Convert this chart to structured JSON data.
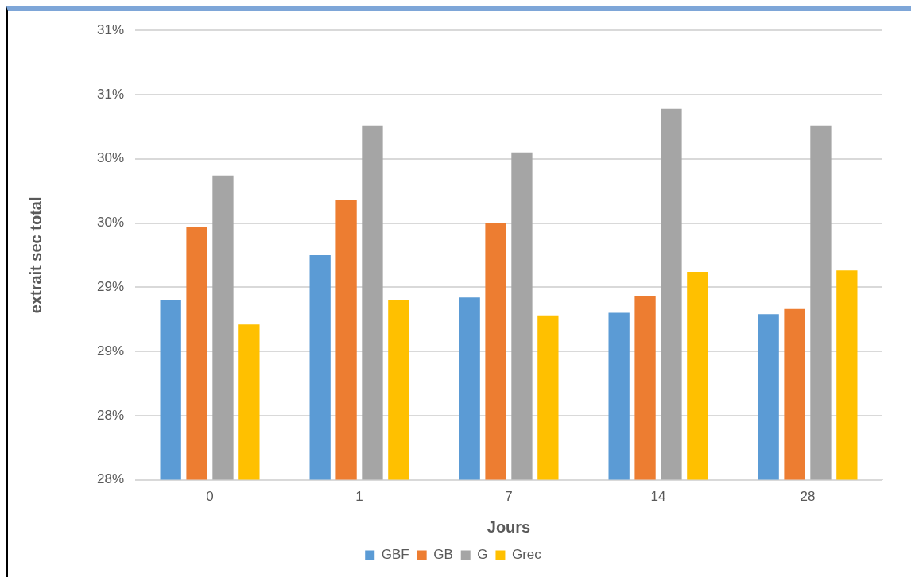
{
  "chart_data": {
    "type": "bar",
    "xlabel": "Jours",
    "ylabel": "extrait sec total",
    "categories": [
      "0",
      "1",
      "7",
      "14",
      "28"
    ],
    "series": [
      {
        "name": "GBF",
        "color": "#5b9bd5",
        "values": [
          28.9,
          29.25,
          28.92,
          28.8,
          28.79
        ]
      },
      {
        "name": "GB",
        "color": "#ed7d31",
        "values": [
          29.47,
          29.68,
          29.5,
          28.93,
          28.83
        ]
      },
      {
        "name": "G",
        "color": "#a5a5a5",
        "values": [
          29.87,
          30.26,
          30.05,
          30.39,
          30.26
        ]
      },
      {
        "name": "Grec",
        "color": "#ffc000",
        "values": [
          28.71,
          28.9,
          28.78,
          29.12,
          29.13
        ]
      }
    ],
    "ylim": [
      27.5,
      31
    ],
    "yticks": [
      {
        "value": 27.5,
        "label": "28%"
      },
      {
        "value": 28,
        "label": "28%"
      },
      {
        "value": 28.5,
        "label": "29%"
      },
      {
        "value": 29,
        "label": "29%"
      },
      {
        "value": 29.5,
        "label": "30%"
      },
      {
        "value": 30,
        "label": "30%"
      },
      {
        "value": 30.5,
        "label": "31%"
      },
      {
        "value": 31,
        "label": "31%"
      }
    ],
    "grid": "y",
    "legend": "bottom"
  }
}
